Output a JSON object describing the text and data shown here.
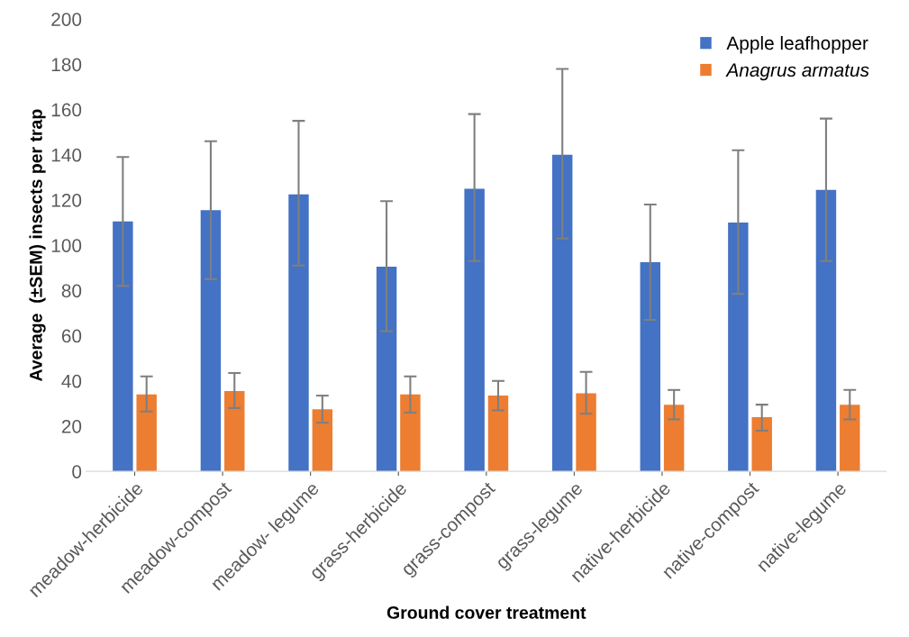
{
  "chart_data": {
    "type": "bar",
    "xlabel": "Ground cover treatment",
    "ylabel": "Average  (±SEM) insects per trap",
    "categories": [
      "meadow-herbicide",
      "meadow-compost",
      "meadow- legume",
      "grass-herbicide",
      "grass-compost",
      "grass-legume",
      "native-herbicide",
      "native-compost",
      "native-legume"
    ],
    "series": [
      {
        "name": "Apple leafhopper",
        "color": "#4472c4",
        "values": [
          110.5,
          115.5,
          122.5,
          90.5,
          125,
          140,
          92.5,
          110,
          124.5
        ],
        "errors": [
          [
            82,
            139
          ],
          [
            85,
            146
          ],
          [
            91,
            155
          ],
          [
            62,
            119.5
          ],
          [
            93,
            158
          ],
          [
            103,
            178
          ],
          [
            67,
            118
          ],
          [
            78.5,
            142
          ],
          [
            93,
            156
          ]
        ]
      },
      {
        "name": "Anagrus armatus",
        "color": "#ed7d31",
        "values": [
          34,
          35.5,
          27.5,
          34,
          33.5,
          34.5,
          29.5,
          24,
          29.5
        ],
        "errors": [
          [
            26.5,
            42
          ],
          [
            28,
            43.5
          ],
          [
            21.5,
            33.5
          ],
          [
            26,
            42
          ],
          [
            27,
            40
          ],
          [
            25.5,
            44
          ],
          [
            23,
            36
          ],
          [
            18,
            29.5
          ],
          [
            23,
            36
          ]
        ]
      }
    ],
    "ylim": [
      0,
      200
    ],
    "yticks": [
      0,
      20,
      40,
      60,
      80,
      100,
      120,
      140,
      160,
      180,
      200
    ],
    "grid": false,
    "legend": "top right"
  }
}
